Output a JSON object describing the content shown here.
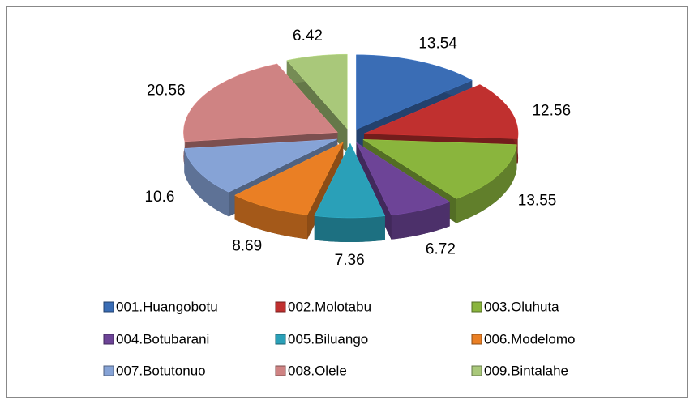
{
  "chart_data": {
    "type": "pie3d",
    "categories": [
      "001.Huangobotu",
      "002.Molotabu",
      "003.Oluhuta",
      "004.Botubarani",
      "005.Biluango",
      "006.Modelomo",
      "007.Botutonuo",
      "008.Olele",
      "009.Bintalahe"
    ],
    "values": [
      13.54,
      12.56,
      13.55,
      6.72,
      7.36,
      8.69,
      10.6,
      20.56,
      6.42
    ],
    "colors": [
      "#3a6db5",
      "#c0302f",
      "#8ab53d",
      "#6d4497",
      "#2aa0b8",
      "#ea7f24",
      "#86a3d6",
      "#cf8383",
      "#a9c87a"
    ],
    "legend": "bottom"
  }
}
